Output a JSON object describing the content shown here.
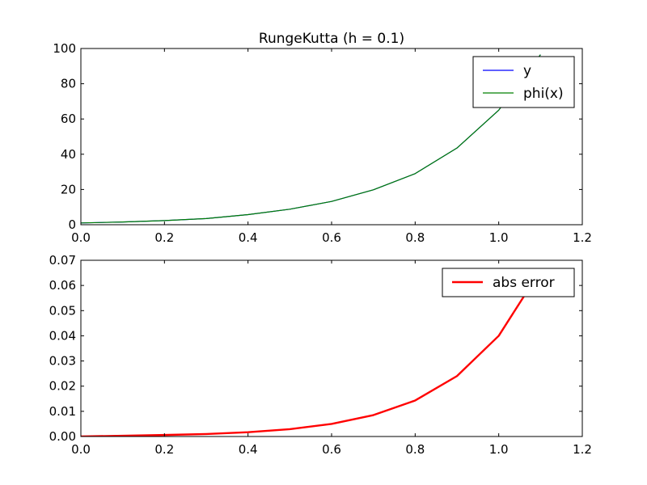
{
  "chart_data": [
    {
      "type": "line",
      "title": "RungeKutta (h = 0.1)",
      "xlabel": "",
      "ylabel": "",
      "xlim": [
        0.0,
        1.2
      ],
      "ylim": [
        0,
        100
      ],
      "xticks": [
        "0.0",
        "0.2",
        "0.4",
        "0.6",
        "0.8",
        "1.0",
        "1.2"
      ],
      "yticks": [
        "0",
        "20",
        "40",
        "60",
        "80",
        "100"
      ],
      "grid": false,
      "legend_position": "top-right",
      "x": [
        0.0,
        0.1,
        0.2,
        0.3,
        0.4,
        0.5,
        0.6,
        0.7,
        0.8,
        0.9,
        1.0,
        1.1
      ],
      "series": [
        {
          "name": "y",
          "color": "#0000ff",
          "values": [
            1.0,
            1.55,
            2.34,
            3.49,
            5.74,
            8.81,
            13.2,
            19.8,
            29.0,
            43.5,
            65.0,
            96.5
          ]
        },
        {
          "name": "phi(x)",
          "color": "#008000",
          "values": [
            1.0,
            1.55,
            2.34,
            3.49,
            5.74,
            8.81,
            13.2,
            19.8,
            29.0,
            43.5,
            65.0,
            96.5
          ]
        }
      ]
    },
    {
      "type": "line",
      "title": "",
      "xlabel": "",
      "ylabel": "",
      "xlim": [
        0.0,
        1.2
      ],
      "ylim": [
        0.0,
        0.07
      ],
      "xticks": [
        "0.0",
        "0.2",
        "0.4",
        "0.6",
        "0.8",
        "1.0",
        "1.2"
      ],
      "yticks": [
        "0.00",
        "0.01",
        "0.02",
        "0.03",
        "0.04",
        "0.05",
        "0.06",
        "0.07"
      ],
      "grid": false,
      "legend_position": "top-right",
      "x": [
        0.0,
        0.1,
        0.2,
        0.3,
        0.4,
        0.5,
        0.6,
        0.7,
        0.8,
        0.9,
        1.0,
        1.1
      ],
      "series": [
        {
          "name": "abs error",
          "color": "#ff0000",
          "values": [
            0.0,
            0.0003,
            0.0006,
            0.001,
            0.0017,
            0.0029,
            0.005,
            0.0085,
            0.0143,
            0.024,
            0.04,
            0.066
          ]
        }
      ]
    }
  ]
}
